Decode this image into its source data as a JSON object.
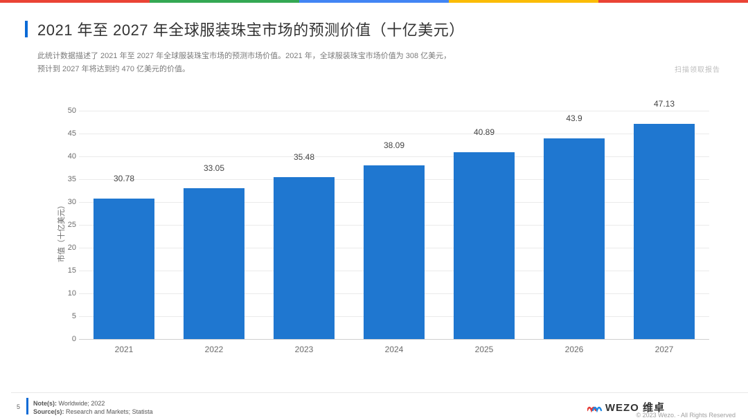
{
  "top_strip_colors": [
    "#ea4335",
    "#34a853",
    "#4285f4",
    "#fbbc05",
    "#ea4335"
  ],
  "title": "2021 年至 2027 年全球服装珠宝市场的预测价值（十亿美元）",
  "subtitle_line1": "此统计数据描述了 2021 年至 2027 年全球服装珠宝市场的预测市场价值。2021 年，全球服装珠宝市场价值为 308 亿美元，",
  "subtitle_line2": "预计到 2027 年将达到约 470 亿美元的价值。",
  "scan_note": "扫描领取报告",
  "chart": {
    "type": "bar",
    "categories": [
      "2021",
      "2022",
      "2023",
      "2024",
      "2025",
      "2026",
      "2027"
    ],
    "values": [
      30.78,
      33.05,
      35.48,
      38.09,
      40.89,
      43.9,
      47.13
    ],
    "value_labels": [
      "30.78",
      "33.05",
      "35.48",
      "38.09",
      "40.89",
      "43.9",
      "47.13"
    ],
    "bar_color": "#1f77d0",
    "background_color": "#ffffff",
    "grid_color": "#eaeaea",
    "axis_color": "#cfcfcf",
    "ylabel": "市值（十亿美元）",
    "ylim": [
      0,
      50
    ],
    "ytick_step": 5,
    "bar_width": 0.68,
    "label_fontsize": 12,
    "tick_fontsize": 11,
    "tick_color": "#6b6b6b"
  },
  "footer": {
    "page_num": "5",
    "notes_label": "Note(s):",
    "notes_value": "Worldwide; 2022",
    "sources_label": "Source(s):",
    "sources_value": "Research and Markets; Statista",
    "logo_text": "WEZO 维卓",
    "logo_colors": {
      "red": "#e53935",
      "blue": "#1e88e5",
      "yellow": "#fbc02d",
      "green": "#34a853"
    },
    "copyright": "© 2023 Wezo. - All Rights Reserved"
  }
}
